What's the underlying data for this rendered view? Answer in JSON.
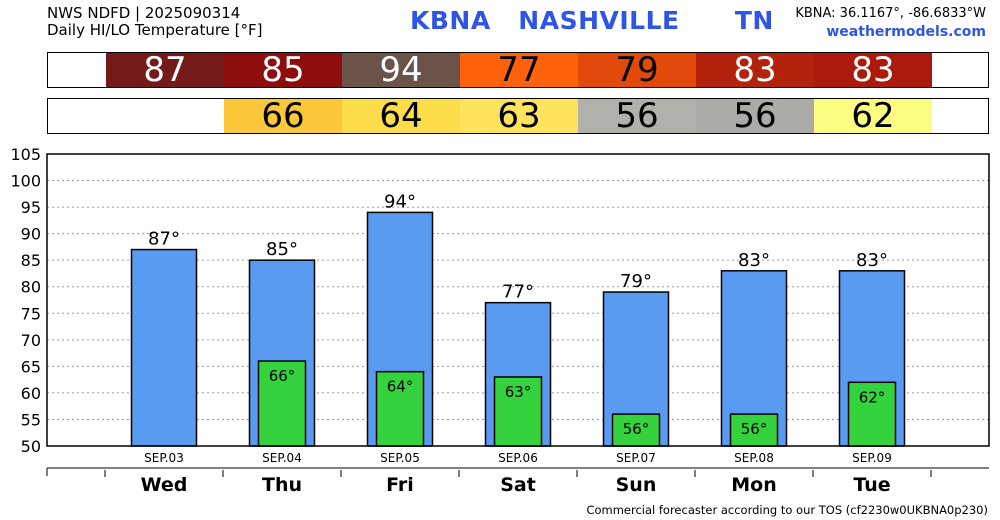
{
  "header": {
    "line1": "NWS NDFD | 2025090314",
    "line2": "Daily HI/LO Temperature [°F]",
    "station_title": "KBNA   NASHVILLE      TN",
    "coords": "KBNA: 36.1167°, -86.6833°W",
    "site": "weathermodels.com"
  },
  "hi_strip": [
    {
      "value": "87",
      "bg": "#751a1a",
      "fg": "#ffffff"
    },
    {
      "value": "85",
      "bg": "#8e0e0e",
      "fg": "#ffffff"
    },
    {
      "value": "94",
      "bg": "#6b5349",
      "fg": "#ffffff"
    },
    {
      "value": "77",
      "bg": "#ff620b",
      "fg": "#000000"
    },
    {
      "value": "79",
      "bg": "#e24a0c",
      "fg": "#000000"
    },
    {
      "value": "83",
      "bg": "#b3220d",
      "fg": "#ffffff"
    },
    {
      "value": "83",
      "bg": "#ab1a0b",
      "fg": "#ffffff"
    }
  ],
  "lo_strip": [
    {
      "value": "",
      "bg": "#ffffff",
      "fg": "#000000"
    },
    {
      "value": "66",
      "bg": "#fcc73a",
      "fg": "#000000"
    },
    {
      "value": "64",
      "bg": "#fedd4a",
      "fg": "#000000"
    },
    {
      "value": "63",
      "bg": "#fee35c",
      "fg": "#000000"
    },
    {
      "value": "56",
      "bg": "#b1b1ab",
      "fg": "#000000"
    },
    {
      "value": "56",
      "bg": "#aaaaa6",
      "fg": "#000000"
    },
    {
      "value": "62",
      "bg": "#fbfd83",
      "fg": "#000000"
    }
  ],
  "chart_data": {
    "type": "bar",
    "title": "Daily HI/LO Temperature [°F]",
    "categories": [
      "SEP.03",
      "SEP.04",
      "SEP.05",
      "SEP.06",
      "SEP.07",
      "SEP.08",
      "SEP.09"
    ],
    "days": [
      "Wed",
      "Thu",
      "Fri",
      "Sat",
      "Sun",
      "Mon",
      "Tue"
    ],
    "series": [
      {
        "values": [
          87,
          85,
          94,
          77,
          79,
          83,
          83
        ],
        "color": "#5a9bf2",
        "labels": [
          "87°",
          "85°",
          "94°",
          "77°",
          "79°",
          "83°",
          "83°"
        ]
      },
      {
        "values": [
          null,
          66,
          64,
          63,
          56,
          56,
          62
        ],
        "color": "#34d23c",
        "labels": [
          "",
          "66°",
          "64°",
          "63°",
          "56°",
          "56°",
          "62°"
        ]
      }
    ],
    "ylim": [
      50,
      105
    ],
    "yticks": [
      "50",
      "55",
      "60",
      "65",
      "70",
      "75",
      "80",
      "85",
      "90",
      "95",
      "100",
      "105"
    ],
    "grid": true
  },
  "footer": "Commercial forecaster according to our TOS (cf2230w0UKBNA0p230)"
}
